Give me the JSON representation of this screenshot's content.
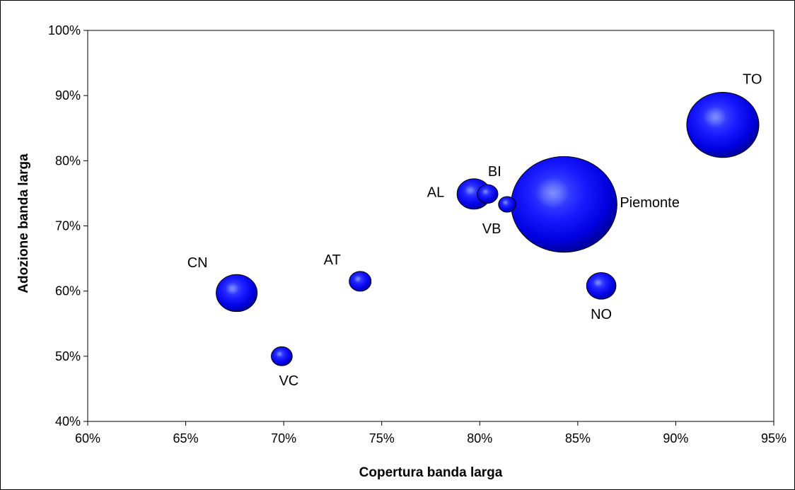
{
  "chart_data": {
    "type": "scatter",
    "variant": "bubble",
    "title": "",
    "xlabel": "Copertura banda larga",
    "ylabel": "Adozione banda larga",
    "xlim": [
      0.6,
      0.95
    ],
    "ylim": [
      0.4,
      1.0
    ],
    "xticks": [
      0.6,
      0.65,
      0.7,
      0.75,
      0.8,
      0.85,
      0.9,
      0.95
    ],
    "yticks": [
      0.4,
      0.5,
      0.6,
      0.7,
      0.8,
      0.9,
      1.0
    ],
    "xtick_labels": [
      "60%",
      "65%",
      "70%",
      "75%",
      "80%",
      "85%",
      "90%",
      "95%"
    ],
    "ytick_labels": [
      "40%",
      "50%",
      "60%",
      "70%",
      "80%",
      "90%",
      "100%"
    ],
    "grid": false,
    "legend": false,
    "bubble_color": "#0000ff",
    "points": [
      {
        "label": "CN",
        "x": 0.676,
        "y": 0.597,
        "size": 2.52,
        "label_pos": "upper-left"
      },
      {
        "label": "VC",
        "x": 0.699,
        "y": 0.5,
        "size": 0.66,
        "label_pos": "below-right"
      },
      {
        "label": "AT",
        "x": 0.739,
        "y": 0.615,
        "size": 0.72,
        "label_pos": "upper-left"
      },
      {
        "label": "AL",
        "x": 0.797,
        "y": 0.749,
        "size": 1.69,
        "label_pos": "left"
      },
      {
        "label": "BI",
        "x": 0.804,
        "y": 0.749,
        "size": 0.64,
        "label_pos": "above"
      },
      {
        "label": "VB",
        "x": 0.814,
        "y": 0.733,
        "size": 0.45,
        "label_pos": "below-left"
      },
      {
        "label": "Piemonte",
        "x": 0.843,
        "y": 0.733,
        "size": 16.8,
        "label_pos": "right"
      },
      {
        "label": "NO",
        "x": 0.862,
        "y": 0.608,
        "size": 1.3,
        "label_pos": "below"
      },
      {
        "label": "TO",
        "x": 0.924,
        "y": 0.855,
        "size": 7.8,
        "label_pos": "upper-right"
      }
    ]
  }
}
